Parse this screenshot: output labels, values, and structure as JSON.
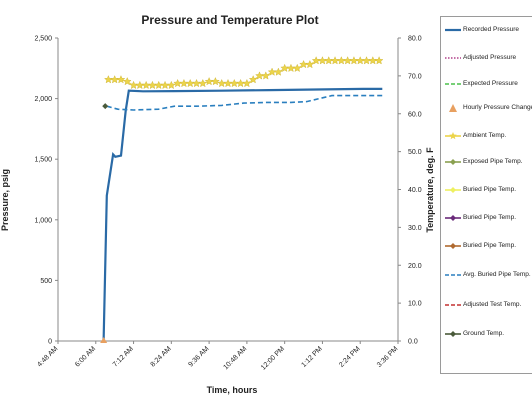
{
  "chart_data": {
    "type": "line",
    "title": "Pressure and Temperature Plot",
    "xlabel": "Time, hours",
    "ylabel_left": "Pressure, psig",
    "ylabel_right": "Temperature, deg. F",
    "x_ticks": [
      "4:48 AM",
      "6:00 AM",
      "7:12 AM",
      "8:24 AM",
      "9:36 AM",
      "10:48 AM",
      "12:00 PM",
      "1:12 PM",
      "2:24 PM",
      "3:36 PM"
    ],
    "x_range_hours": [
      4.8,
      15.6
    ],
    "y_left_ticks": [
      "0",
      "500",
      "1,000",
      "1,500",
      "2,000",
      "2,500"
    ],
    "y_left_range": [
      0,
      2500
    ],
    "y_right_ticks": [
      "0.0",
      "10.0",
      "20.0",
      "30.0",
      "40.0",
      "50.0",
      "60.0",
      "70.0",
      "80.0"
    ],
    "y_right_range": [
      0,
      80
    ],
    "grid": false,
    "legend_position": "right",
    "series": [
      {
        "name": "Recorded Pressure",
        "axis": "left",
        "style": "solid",
        "color": "#2a6aa6",
        "x": [
          6.25,
          6.35,
          6.55,
          6.62,
          6.8,
          6.95,
          7.05,
          7.5,
          8.5,
          10.0,
          11.5,
          13.0,
          14.5,
          15.1
        ],
        "y": [
          0,
          1200,
          1540,
          1520,
          1530,
          1900,
          2065,
          2060,
          2062,
          2065,
          2070,
          2075,
          2080,
          2080
        ]
      },
      {
        "name": "Avg. Buried Pipe Temp.",
        "axis": "right",
        "style": "dashed",
        "color": "#2a7fbf",
        "x": [
          6.35,
          6.7,
          7.2,
          8.0,
          8.5,
          9.2,
          10.0,
          10.7,
          11.5,
          12.2,
          12.7,
          13.5,
          14.2,
          15.1
        ],
        "y": [
          62.0,
          61.2,
          61.0,
          61.2,
          62.0,
          62.0,
          62.2,
          62.8,
          63.0,
          63.0,
          63.2,
          64.8,
          64.8,
          64.8
        ]
      },
      {
        "name": "Ambient Temp.",
        "axis": "right",
        "style": "star",
        "color": "#ecd44a",
        "x": [
          6.4,
          6.6,
          6.8,
          7.0,
          7.2,
          7.4,
          7.6,
          7.8,
          8.0,
          8.2,
          8.4,
          8.6,
          8.8,
          9.0,
          9.2,
          9.4,
          9.6,
          9.8,
          10.0,
          10.2,
          10.4,
          10.6,
          10.8,
          11.0,
          11.2,
          11.4,
          11.6,
          11.8,
          12.0,
          12.2,
          12.4,
          12.6,
          12.8,
          13.0,
          13.2,
          13.4,
          13.6,
          13.8,
          14.0,
          14.2,
          14.4,
          14.6,
          14.8,
          15.0
        ],
        "y": [
          69,
          69,
          69,
          68.5,
          67.5,
          67.5,
          67.5,
          67.5,
          67.5,
          67.5,
          67.5,
          68,
          68,
          68,
          68,
          68,
          68.5,
          68.5,
          68,
          68,
          68,
          68,
          68,
          69,
          70,
          70,
          71,
          71,
          72,
          72,
          72,
          73,
          73,
          74,
          74,
          74,
          74,
          74,
          74,
          74,
          74,
          74,
          74,
          74
        ]
      },
      {
        "name": "Ground Temp.",
        "axis": "right",
        "style": "marker",
        "color": "#4a5a3a",
        "x": [
          6.3
        ],
        "y": [
          62.0
        ]
      },
      {
        "name": "Hourly Pressure Change",
        "axis": "left",
        "style": "triangle",
        "color": "#e8a060",
        "x": [
          6.25
        ],
        "y": [
          0
        ]
      }
    ],
    "legend": [
      {
        "label": "Recorded Pressure",
        "style": "solid",
        "color": "#2a6aa6"
      },
      {
        "label": "Adjusted Pressure",
        "style": "dotted",
        "color": "#b0408a"
      },
      {
        "label": "Expected Pressure",
        "style": "dashed",
        "color": "#4cc04c"
      },
      {
        "label": "Hourly Pressure Change",
        "style": "triangle",
        "color": "#e8a060"
      },
      {
        "label": "Ambient Temp.",
        "style": "star",
        "color": "#ecd44a"
      },
      {
        "label": "Exposed Pipe Temp.",
        "style": "line-marker",
        "color": "#8aa050"
      },
      {
        "label": "Buried Pipe Temp.",
        "style": "line-marker",
        "color": "#eef060"
      },
      {
        "label": "Buried Pipe Temp.",
        "style": "line-marker",
        "color": "#6a2a7a"
      },
      {
        "label": "Buried Pipe Temp.",
        "style": "line-marker",
        "color": "#b06a30"
      },
      {
        "label": "Avg. Buried Pipe Temp.",
        "style": "dashed",
        "color": "#2a7fbf"
      },
      {
        "label": "Adjusted Test Temp.",
        "style": "dashed",
        "color": "#c43030"
      },
      {
        "label": "Ground Temp.",
        "style": "line-marker",
        "color": "#4a5a3a"
      }
    ]
  }
}
